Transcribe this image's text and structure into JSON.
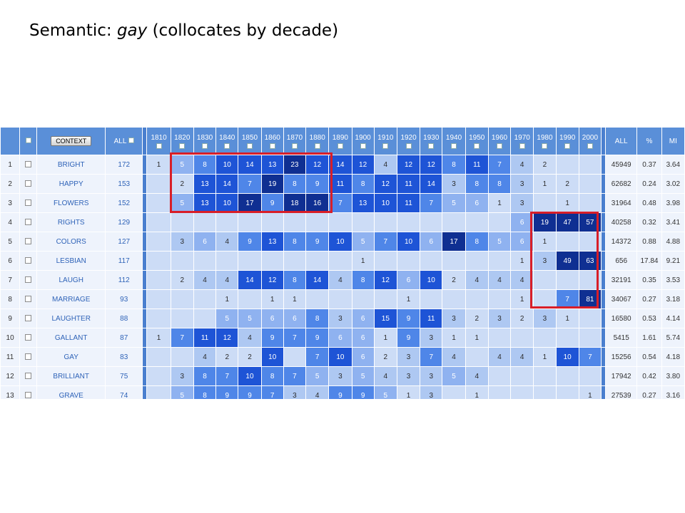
{
  "slide": {
    "title_prefix": "Semantic: ",
    "title_word": "gay",
    "title_suffix": " (collocates by decade)"
  },
  "header": {
    "context_label": "CONTEXT",
    "all_label": "ALL",
    "decades": [
      "1810",
      "1820",
      "1830",
      "1840",
      "1850",
      "1860",
      "1870",
      "1880",
      "1890",
      "1900",
      "1910",
      "1920",
      "1930",
      "1940",
      "1950",
      "1960",
      "1970",
      "1980",
      "1990",
      "2000"
    ],
    "stats": [
      "ALL",
      "%",
      "MI"
    ]
  },
  "rows": [
    {
      "n": "1",
      "word": "BRIGHT",
      "total": "172",
      "vals": [
        "1",
        "5",
        "8",
        "10",
        "14",
        "13",
        "23",
        "12",
        "14",
        "12",
        "4",
        "12",
        "12",
        "8",
        "11",
        "7",
        "4",
        "2",
        "",
        ""
      ],
      "all": "45949",
      "pct": "0.37",
      "mi": "3.64"
    },
    {
      "n": "2",
      "word": "HAPPY",
      "total": "153",
      "vals": [
        "",
        "2",
        "13",
        "14",
        "7",
        "19",
        "8",
        "9",
        "11",
        "8",
        "12",
        "11",
        "14",
        "3",
        "8",
        "8",
        "3",
        "1",
        "2",
        ""
      ],
      "all": "62682",
      "pct": "0.24",
      "mi": "3.02"
    },
    {
      "n": "3",
      "word": "FLOWERS",
      "total": "152",
      "vals": [
        "",
        "5",
        "13",
        "10",
        "17",
        "9",
        "18",
        "16",
        "7",
        "13",
        "10",
        "11",
        "7",
        "5",
        "6",
        "1",
        "3",
        "",
        "1",
        ""
      ],
      "all": "31964",
      "pct": "0.48",
      "mi": "3.98"
    },
    {
      "n": "4",
      "word": "RIGHTS",
      "total": "129",
      "vals": [
        "",
        "",
        "",
        "",
        "",
        "",
        "",
        "",
        "",
        "",
        "",
        "",
        "",
        "",
        "",
        "",
        "6",
        "19",
        "47",
        "57"
      ],
      "all": "40258",
      "pct": "0.32",
      "mi": "3.41"
    },
    {
      "n": "5",
      "word": "COLORS",
      "total": "127",
      "vals": [
        "",
        "3",
        "6",
        "4",
        "9",
        "13",
        "8",
        "9",
        "10",
        "5",
        "7",
        "10",
        "6",
        "17",
        "8",
        "5",
        "6",
        "1",
        "",
        ""
      ],
      "all": "14372",
      "pct": "0.88",
      "mi": "4.88"
    },
    {
      "n": "6",
      "word": "LESBIAN",
      "total": "117",
      "vals": [
        "",
        "",
        "",
        "",
        "",
        "",
        "",
        "",
        "",
        "1",
        "",
        "",
        "",
        "",
        "",
        "",
        "1",
        "3",
        "49",
        "63"
      ],
      "all": "656",
      "pct": "17.84",
      "mi": "9.21"
    },
    {
      "n": "7",
      "word": "LAUGH",
      "total": "112",
      "vals": [
        "",
        "2",
        "4",
        "4",
        "14",
        "12",
        "8",
        "14",
        "4",
        "8",
        "12",
        "6",
        "10",
        "2",
        "4",
        "4",
        "4",
        "",
        "",
        ""
      ],
      "all": "32191",
      "pct": "0.35",
      "mi": "3.53"
    },
    {
      "n": "8",
      "word": "MARRIAGE",
      "total": "93",
      "vals": [
        "",
        "",
        "",
        "1",
        "",
        "1",
        "1",
        "",
        "",
        "",
        "",
        "1",
        "",
        "",
        "",
        "",
        "1",
        "",
        "7",
        "81"
      ],
      "all": "34067",
      "pct": "0.27",
      "mi": "3.18"
    },
    {
      "n": "9",
      "word": "LAUGHTER",
      "total": "88",
      "vals": [
        "",
        "",
        "",
        "5",
        "5",
        "6",
        "6",
        "8",
        "3",
        "6",
        "15",
        "9",
        "11",
        "3",
        "2",
        "3",
        "2",
        "3",
        "1",
        ""
      ],
      "all": "16580",
      "pct": "0.53",
      "mi": "4.14"
    },
    {
      "n": "10",
      "word": "GALLANT",
      "total": "87",
      "vals": [
        "1",
        "7",
        "11",
        "12",
        "4",
        "9",
        "7",
        "9",
        "6",
        "6",
        "1",
        "9",
        "3",
        "1",
        "1",
        "",
        "",
        "",
        "",
        ""
      ],
      "all": "5415",
      "pct": "1.61",
      "mi": "5.74"
    },
    {
      "n": "11",
      "word": "GAY",
      "total": "83",
      "vals": [
        "",
        "",
        "4",
        "2",
        "2",
        "10",
        "",
        "7",
        "10",
        "6",
        "2",
        "3",
        "7",
        "4",
        "",
        "4",
        "4",
        "1",
        "10",
        "7"
      ],
      "all": "15256",
      "pct": "0.54",
      "mi": "4.18"
    },
    {
      "n": "12",
      "word": "BRILLIANT",
      "total": "75",
      "vals": [
        "",
        "3",
        "8",
        "7",
        "10",
        "8",
        "7",
        "5",
        "3",
        "5",
        "4",
        "3",
        "3",
        "5",
        "4",
        "",
        "",
        "",
        "",
        ""
      ],
      "all": "17942",
      "pct": "0.42",
      "mi": "3.80"
    },
    {
      "n": "13",
      "word": "GRAVE",
      "total": "74",
      "vals": [
        "",
        "5",
        "8",
        "9",
        "9",
        "7",
        "3",
        "4",
        "9",
        "9",
        "5",
        "1",
        "3",
        "",
        "1",
        "",
        "",
        "",
        "",
        "1"
      ],
      "all": "27539",
      "pct": "0.27",
      "mi": "3.16"
    }
  ]
}
